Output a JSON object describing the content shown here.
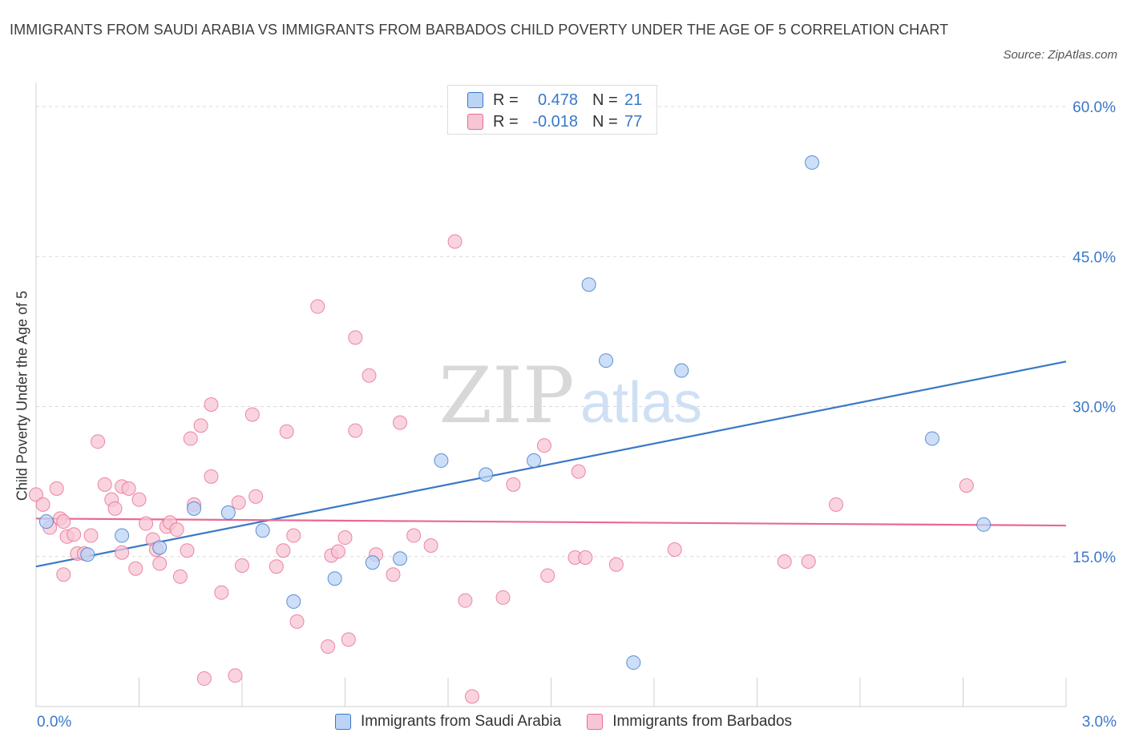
{
  "title": "IMMIGRANTS FROM SAUDI ARABIA VS IMMIGRANTS FROM BARBADOS CHILD POVERTY UNDER THE AGE OF 5 CORRELATION CHART",
  "source": "Source: ZipAtlas.com",
  "watermark": {
    "zip": "ZIP",
    "atlas": "atlas"
  },
  "colors": {
    "blue": "#3a78c8",
    "blue_fill": "#bcd3f5",
    "pink": "#e86a92",
    "pink_fill": "#f7c6d4"
  },
  "legend": {
    "rows": [
      {
        "r_label": "R =",
        "r_value": "0.478",
        "n_label": "N =",
        "n_value": "21"
      },
      {
        "r_label": "R =",
        "r_value": "-0.018",
        "n_label": "N = ",
        "n_value": "77"
      }
    ]
  },
  "chart_data": {
    "type": "scatter",
    "title": "IMMIGRANTS FROM SAUDI ARABIA VS IMMIGRANTS FROM BARBADOS CHILD POVERTY UNDER THE AGE OF 5 CORRELATION CHART",
    "xlabel": "",
    "ylabel": "Child Poverty Under the Age of 5",
    "xlim": [
      0,
      3.0
    ],
    "ylim": [
      0,
      60
    ],
    "x_tick_labels": [
      "0.0%",
      "3.0%"
    ],
    "y_tick_labels": [
      "15.0%",
      "30.0%",
      "45.0%",
      "60.0%"
    ],
    "y_ticks": [
      15,
      30,
      45,
      60
    ],
    "grid": true,
    "legend_position": "top-center",
    "series": [
      {
        "name": "Immigrants from Saudi Arabia",
        "color": "#3a78c8",
        "trend": {
          "x": [
            0,
            3.0
          ],
          "y": [
            14.0,
            34.5
          ]
        },
        "points": [
          [
            0.03,
            18.5
          ],
          [
            0.15,
            15.2
          ],
          [
            0.25,
            17.1
          ],
          [
            0.36,
            15.9
          ],
          [
            0.46,
            19.8
          ],
          [
            0.56,
            19.4
          ],
          [
            0.66,
            17.6
          ],
          [
            0.75,
            10.5
          ],
          [
            0.87,
            12.8
          ],
          [
            0.98,
            14.4
          ],
          [
            1.06,
            14.8
          ],
          [
            1.18,
            24.6
          ],
          [
            1.31,
            23.2
          ],
          [
            1.45,
            24.6
          ],
          [
            1.61,
            42.2
          ],
          [
            1.66,
            34.6
          ],
          [
            1.74,
            4.4
          ],
          [
            1.88,
            33.6
          ],
          [
            2.26,
            54.4
          ],
          [
            2.61,
            26.8
          ],
          [
            2.76,
            18.2
          ]
        ]
      },
      {
        "name": "Immigrants from Barbados",
        "color": "#e86a92",
        "trend": {
          "x": [
            0,
            3.0
          ],
          "y": [
            18.8,
            18.1
          ]
        },
        "points": [
          [
            0.0,
            21.2
          ],
          [
            0.02,
            20.2
          ],
          [
            0.04,
            17.9
          ],
          [
            0.06,
            21.8
          ],
          [
            0.07,
            18.8
          ],
          [
            0.08,
            18.5
          ],
          [
            0.08,
            13.2
          ],
          [
            0.09,
            17.0
          ],
          [
            0.11,
            17.2
          ],
          [
            0.12,
            15.3
          ],
          [
            0.14,
            15.3
          ],
          [
            0.16,
            17.1
          ],
          [
            0.18,
            26.5
          ],
          [
            0.2,
            22.2
          ],
          [
            0.22,
            20.7
          ],
          [
            0.23,
            19.8
          ],
          [
            0.25,
            15.4
          ],
          [
            0.25,
            22.0
          ],
          [
            0.27,
            21.8
          ],
          [
            0.29,
            13.8
          ],
          [
            0.3,
            20.7
          ],
          [
            0.32,
            18.3
          ],
          [
            0.34,
            16.7
          ],
          [
            0.35,
            15.7
          ],
          [
            0.36,
            14.3
          ],
          [
            0.38,
            18.0
          ],
          [
            0.39,
            18.4
          ],
          [
            0.41,
            17.7
          ],
          [
            0.42,
            13.0
          ],
          [
            0.44,
            15.6
          ],
          [
            0.45,
            26.8
          ],
          [
            0.46,
            20.2
          ],
          [
            0.48,
            28.1
          ],
          [
            0.49,
            2.8
          ],
          [
            0.51,
            23.0
          ],
          [
            0.51,
            30.2
          ],
          [
            0.54,
            11.4
          ],
          [
            0.58,
            3.1
          ],
          [
            0.59,
            20.4
          ],
          [
            0.6,
            14.1
          ],
          [
            0.63,
            29.2
          ],
          [
            0.64,
            21.0
          ],
          [
            0.7,
            14.0
          ],
          [
            0.72,
            15.6
          ],
          [
            0.73,
            27.5
          ],
          [
            0.75,
            17.1
          ],
          [
            0.76,
            8.5
          ],
          [
            0.82,
            40.0
          ],
          [
            0.85,
            6.0
          ],
          [
            0.86,
            15.1
          ],
          [
            0.88,
            15.5
          ],
          [
            0.9,
            16.9
          ],
          [
            0.91,
            6.7
          ],
          [
            0.93,
            27.6
          ],
          [
            0.93,
            36.9
          ],
          [
            0.97,
            33.1
          ],
          [
            0.99,
            15.2
          ],
          [
            1.04,
            13.2
          ],
          [
            1.06,
            28.4
          ],
          [
            1.1,
            17.1
          ],
          [
            1.15,
            16.1
          ],
          [
            1.22,
            46.5
          ],
          [
            1.25,
            10.6
          ],
          [
            1.27,
            1.0
          ],
          [
            1.36,
            10.9
          ],
          [
            1.39,
            22.2
          ],
          [
            1.48,
            26.1
          ],
          [
            1.49,
            13.1
          ],
          [
            1.57,
            14.9
          ],
          [
            1.58,
            23.5
          ],
          [
            1.6,
            14.9
          ],
          [
            1.69,
            14.2
          ],
          [
            1.86,
            15.7
          ],
          [
            2.18,
            14.5
          ],
          [
            2.25,
            14.5
          ],
          [
            2.33,
            20.2
          ],
          [
            2.71,
            22.1
          ]
        ]
      }
    ]
  },
  "bottom_legend": [
    {
      "label": "Immigrants from Saudi Arabia"
    },
    {
      "label": "Immigrants from Barbados"
    }
  ]
}
